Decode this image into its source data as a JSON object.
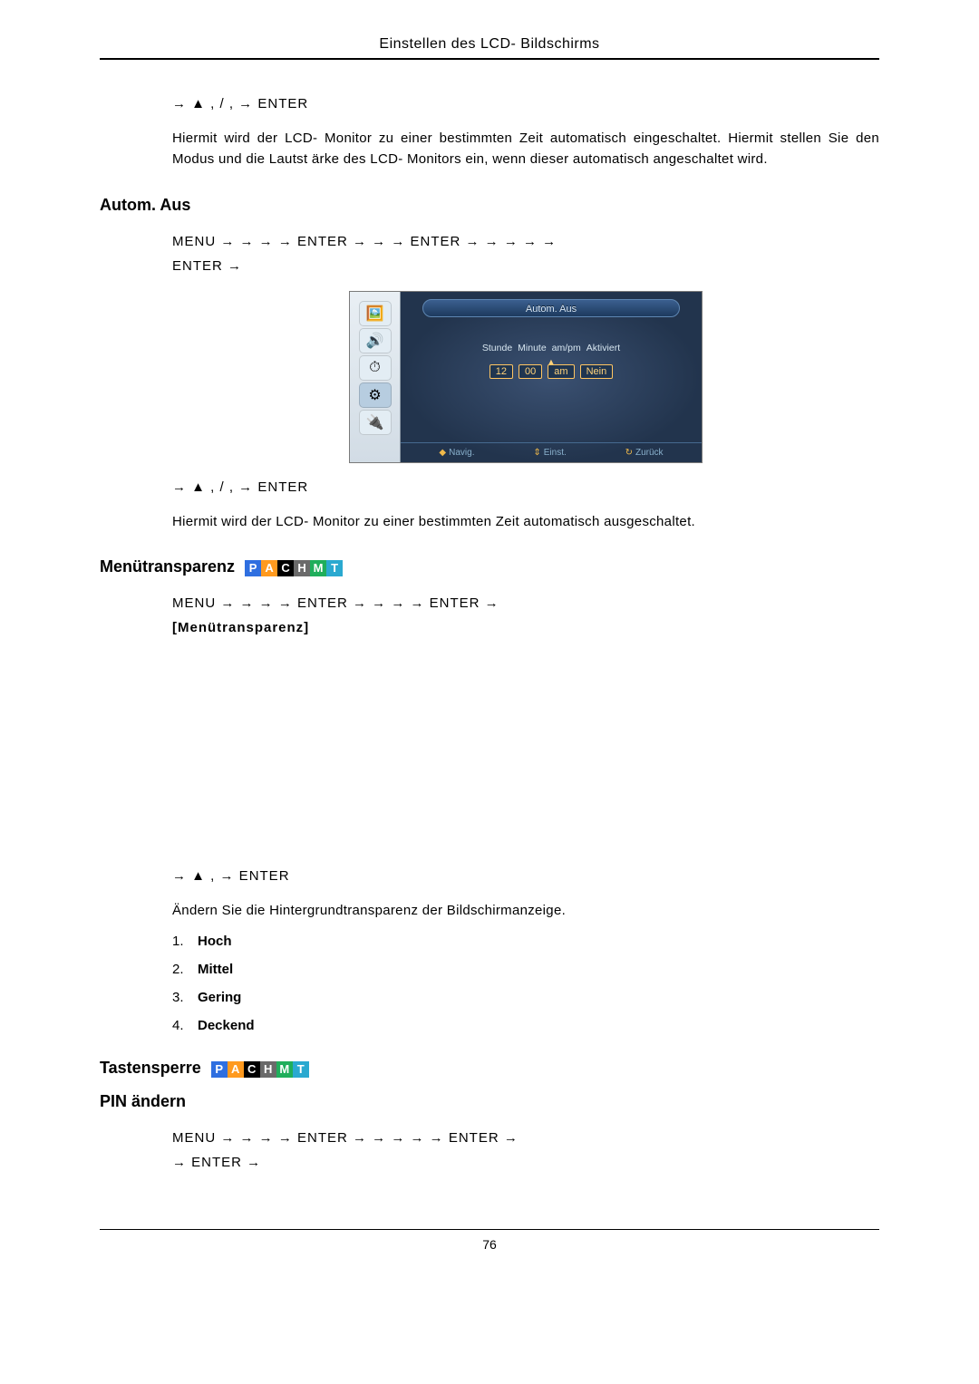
{
  "page": {
    "header": "Einstellen des LCD- Bildschirms",
    "number": "76"
  },
  "nav1": "→ ▲ ,    /   ,    → ENTER",
  "text_auto_on": "Hiermit wird der LCD- Monitor zu einer bestimmten Zeit automatisch eingeschaltet. Hiermit stellen Sie den Modus und die Lautst ärke des LCD- Monitors ein, wenn dieser automatisch angeschaltet wird.",
  "section_autom_aus": "Autom. Aus",
  "nav_autom_line1": "MENU →    →   →    → ENTER →                              →     → ENTER →        →    →    →    →",
  "nav_autom_line2": "ENTER →",
  "osd": {
    "title": "Autom. Aus",
    "labels": {
      "stunde": "Stunde",
      "minute": "Minute",
      "ampm": "am/pm",
      "aktiviert": "Aktiviert"
    },
    "values": {
      "stunde": "12",
      "minute": "00",
      "ampm": "am",
      "aktiviert": "Nein"
    },
    "footer": {
      "navig": "Navig.",
      "einst": "Einst.",
      "zuruck": "Zurück"
    },
    "side_icons": [
      "🖼️",
      "🔊",
      "⏱",
      "⚙",
      "🔌"
    ],
    "icon_bg": [
      "#e3edf4",
      "#e3edf4",
      "#e3edf4",
      "#b7cde0",
      "#e3edf4"
    ]
  },
  "text_auto_off": "Hiermit wird der LCD- Monitor zu einer bestimmten Zeit automatisch ausgeschaltet.",
  "section_menu_trans": "Menütransparenz",
  "pachmt": [
    {
      "l": "P",
      "c": "#2f6fe0"
    },
    {
      "l": "A",
      "c": "#ff9a1f"
    },
    {
      "l": "C",
      "c": "#000000"
    },
    {
      "l": "H",
      "c": "#6a6a6a"
    },
    {
      "l": "M",
      "c": "#1fae5b"
    },
    {
      "l": "T",
      "c": "#2aa9d0"
    }
  ],
  "nav_trans_line1": "MENU   →       →    →      →   ENTER   →                           →    →       →   ENTER   →",
  "nav_trans_label": "[Menütransparenz]",
  "nav_trans_after": "→ ▲ ,    → ENTER",
  "text_trans": "Ändern Sie die Hintergrundtransparenz der Bildschirmanzeige.",
  "trans_list": [
    {
      "n": "1.",
      "l": "Hoch"
    },
    {
      "n": "2.",
      "l": "Mittel"
    },
    {
      "n": "3.",
      "l": "Gering"
    },
    {
      "n": "4.",
      "l": "Deckend"
    }
  ],
  "section_tastensperre": "Tastensperre",
  "section_pin": "PIN ändern",
  "nav_pin_line1": "MENU →    →   →    → ENTER →                         →   →   →    → ENTER →",
  "nav_pin_line2": "→ ENTER →"
}
